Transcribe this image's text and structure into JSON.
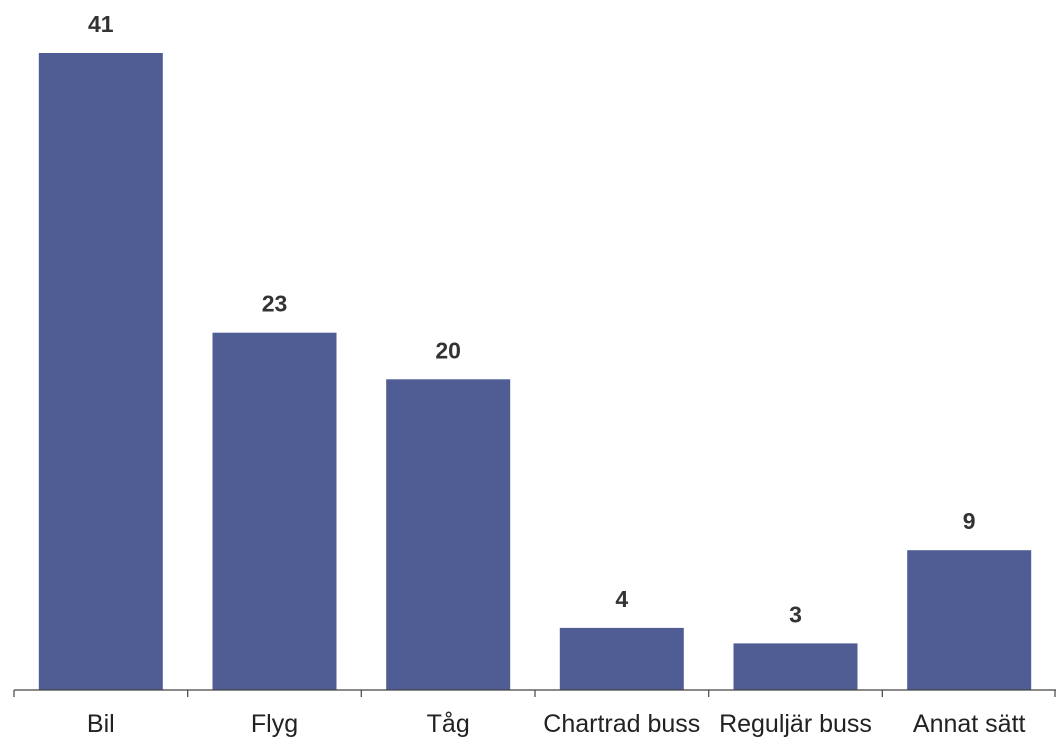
{
  "chart_data": {
    "type": "bar",
    "categories": [
      "Bil",
      "Flyg",
      "Tåg",
      "Chartrad buss",
      "Reguljär buss",
      "Annat sätt"
    ],
    "values": [
      41,
      23,
      20,
      4,
      3,
      9
    ],
    "value_labels": [
      "41",
      "23",
      "20",
      "4",
      "3",
      "9"
    ],
    "title": "",
    "xlabel": "",
    "ylabel": "",
    "ylim": [
      0,
      41
    ],
    "grid": false,
    "legend": "none",
    "bar_color": "#4f5d94"
  }
}
